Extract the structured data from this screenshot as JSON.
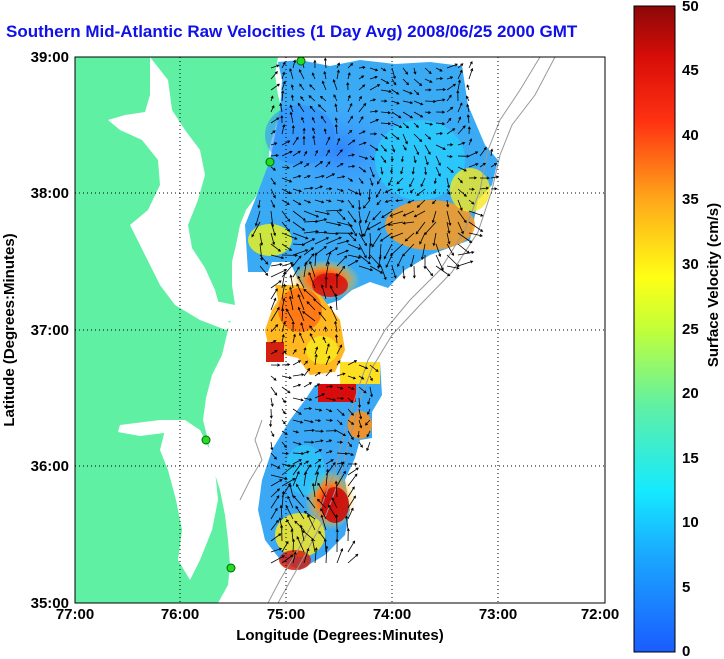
{
  "title": "Southern Mid-Atlantic Raw Velocities (1 Day Avg) 2008/06/25 2000 GMT",
  "map": {
    "x_axis_label": "Longitude (Degrees:Minutes)",
    "y_axis_label": "Latitude (Degrees:Minutes)",
    "x_ticks": [
      "77:00",
      "76:00",
      "75:00",
      "74:00",
      "73:00",
      "72:00"
    ],
    "y_ticks": [
      "39:00",
      "38:00",
      "37:00",
      "36:00",
      "35:00"
    ],
    "grid": "dotted",
    "land_color": "#5ff0a4",
    "water_color": "#ffffff",
    "station_color": "#22dd22"
  },
  "colorbar": {
    "label": "Surface Velocity (cm/s)",
    "ticks": [
      "50",
      "45",
      "40",
      "35",
      "30",
      "25",
      "20",
      "15",
      "10",
      "5",
      "0"
    ],
    "colormap": "jet",
    "range": [
      0,
      50
    ]
  }
}
